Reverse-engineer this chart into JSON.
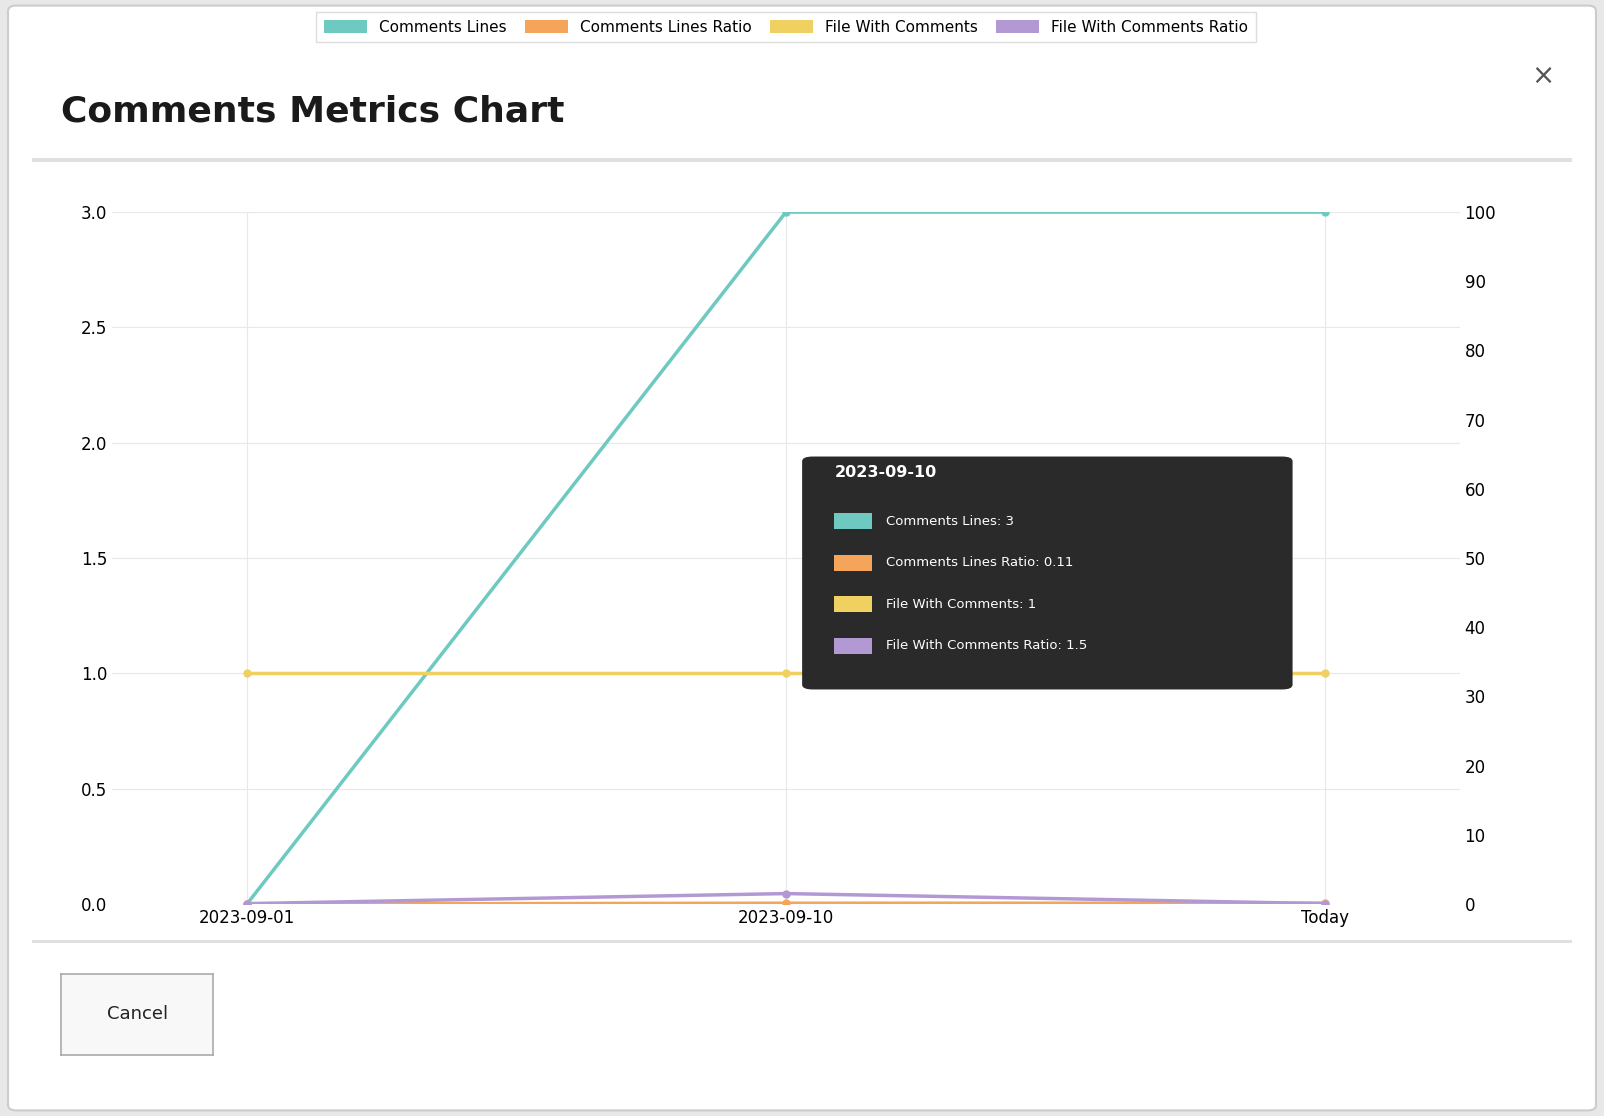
{
  "title": "Comments Metrics Chart",
  "x_labels": [
    "2023-09-01",
    "2023-09-10",
    "Today"
  ],
  "x_positions": [
    0,
    1,
    2
  ],
  "series": {
    "Comments Lines": {
      "values": [
        0,
        3,
        3
      ],
      "color": "#6ec9c0",
      "axis": "left",
      "linewidth": 2.5,
      "marker": "o",
      "markersize": 5
    },
    "Comments Lines Ratio": {
      "values": [
        0,
        0.11,
        0.11
      ],
      "color": "#f5a55a",
      "axis": "right",
      "linewidth": 2.5,
      "marker": "o",
      "markersize": 5
    },
    "File With Comments": {
      "values": [
        1,
        1,
        1
      ],
      "color": "#f0d060",
      "axis": "left",
      "linewidth": 2.5,
      "marker": "o",
      "markersize": 5
    },
    "File With Comments Ratio": {
      "values": [
        0.05,
        1.5,
        0.05
      ],
      "color": "#b399d4",
      "axis": "right",
      "linewidth": 2.5,
      "marker": "o",
      "markersize": 5
    }
  },
  "left_ylim": [
    0,
    3.0
  ],
  "left_yticks": [
    0,
    0.5,
    1.0,
    1.5,
    2.0,
    2.5,
    3.0
  ],
  "right_ylim": [
    0,
    100
  ],
  "right_yticks": [
    0,
    10,
    20,
    30,
    40,
    50,
    60,
    70,
    80,
    90,
    100
  ],
  "tooltip": {
    "date": "2023-09-10",
    "lines": [
      {
        "color": "#6ec9c0",
        "text": "Comments Lines: 3"
      },
      {
        "color": "#f5a55a",
        "text": "Comments Lines Ratio: 0.11"
      },
      {
        "color": "#f0d060",
        "text": "File With Comments: 1"
      },
      {
        "color": "#b399d4",
        "text": "File With Comments Ratio: 1.5"
      }
    ],
    "bg_color": "#2a2a2a",
    "text_color": "#ffffff"
  },
  "legend_labels": [
    "Comments Lines",
    "Comments Lines Ratio",
    "File With Comments",
    "File With Comments Ratio"
  ],
  "legend_colors": [
    "#6ec9c0",
    "#f5a55a",
    "#f0d060",
    "#b399d4"
  ],
  "chart_bg_color": "#ffffff",
  "grid_color": "#e8e8e8",
  "cancel_button": "Cancel",
  "close_button": "×",
  "dialog_bg_color": "#ffffff",
  "outer_bg_color": "#e8e8e8",
  "separator_color": "#e0e0e0",
  "title_fontsize": 26,
  "legend_fontsize": 11,
  "tick_fontsize": 12
}
